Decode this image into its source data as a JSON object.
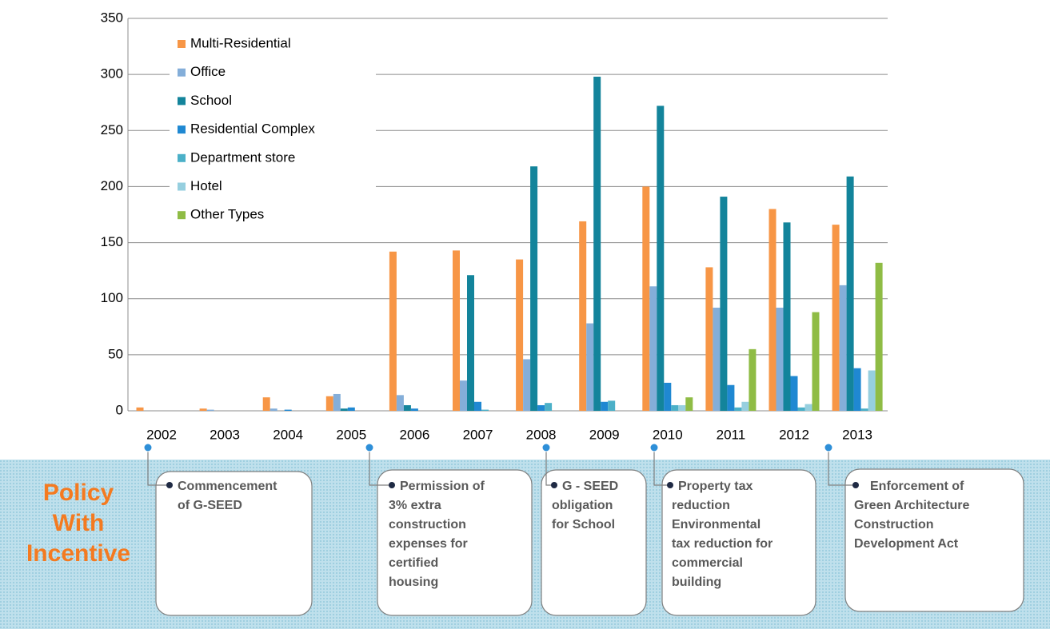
{
  "chart_data": {
    "type": "bar",
    "categories": [
      "2002",
      "2003",
      "2004",
      "2005",
      "2006",
      "2007",
      "2008",
      "2009",
      "2010",
      "2011",
      "2012",
      "2013"
    ],
    "series": [
      {
        "name": "Multi-Residential",
        "color": "#f79646",
        "values": [
          3,
          2,
          12,
          13,
          142,
          143,
          135,
          169,
          200,
          128,
          180,
          166
        ]
      },
      {
        "name": "Office",
        "color": "#84aed9",
        "values": [
          0,
          1,
          2,
          15,
          14,
          27,
          46,
          78,
          111,
          92,
          92,
          112
        ]
      },
      {
        "name": "School",
        "color": "#13849b",
        "values": [
          0,
          0,
          0,
          2,
          5,
          121,
          218,
          298,
          272,
          191,
          168,
          209
        ]
      },
      {
        "name": "Residential Complex",
        "color": "#1f88d2",
        "values": [
          0,
          0,
          1,
          3,
          2,
          8,
          5,
          8,
          25,
          23,
          31,
          38
        ]
      },
      {
        "name": "Department store",
        "color": "#4bb0c8",
        "values": [
          0,
          0,
          0,
          0,
          0,
          1,
          7,
          9,
          5,
          3,
          3,
          2
        ]
      },
      {
        "name": "Hotel",
        "color": "#96cfdf",
        "values": [
          0,
          0,
          0,
          0,
          0,
          0,
          0,
          0,
          5,
          8,
          6,
          36
        ]
      },
      {
        "name": "Other Types",
        "color": "#8fbc45",
        "values": [
          0,
          0,
          0,
          0,
          0,
          0,
          0,
          0,
          12,
          55,
          88,
          132
        ]
      }
    ],
    "ylim": [
      0,
      350
    ],
    "yticks": [
      0,
      50,
      100,
      150,
      200,
      250,
      300,
      350
    ],
    "grid": true,
    "legend": "upper left"
  },
  "policy_panel": {
    "title": [
      "Policy",
      "With",
      "Incentive"
    ],
    "policies": [
      [
        "Commencement",
        "of G-SEED"
      ],
      [
        "Permission of",
        "3% extra",
        "construction",
        "expenses for",
        "certified",
        "housing"
      ],
      [
        "G - SEED",
        "obligation",
        "for School"
      ],
      [
        "Property tax",
        "reduction",
        "Environmental",
        "tax reduction for",
        "commercial",
        "building"
      ],
      [
        "Enforcement of",
        "Green Architecture",
        "Construction",
        "Development Act"
      ]
    ]
  }
}
